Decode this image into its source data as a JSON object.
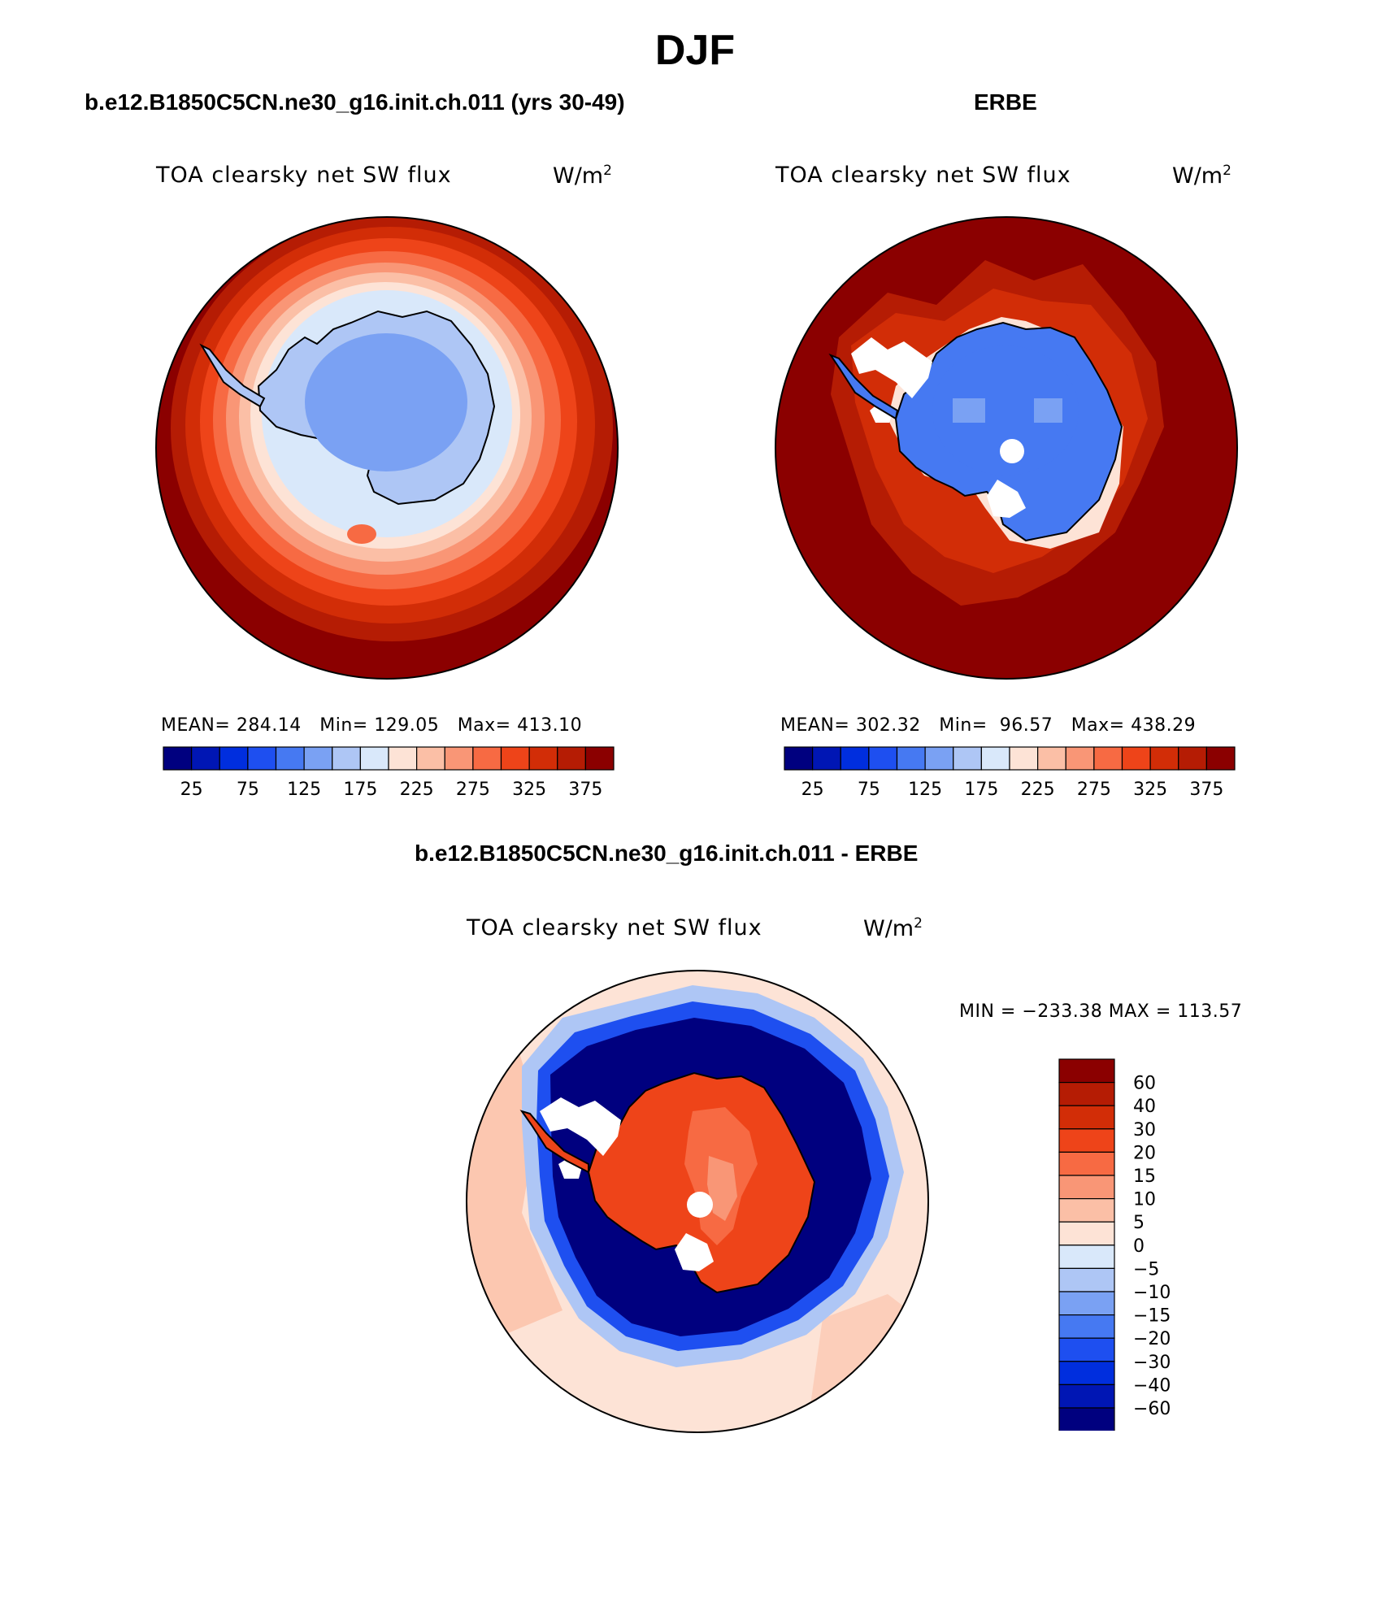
{
  "page_title": "DJF",
  "panels": [
    {
      "header": "b.e12.B1850C5CN.ne30_g16.init.ch.011 (yrs 30-49)",
      "variable": "TOA clearsky net SW flux",
      "units_base": "W/m",
      "units_exp": "2",
      "stats": "MEAN= 284.14   Min= 129.05   Max= 413.10",
      "colorbar_labels": [
        "25",
        "75",
        "125",
        "175",
        "225",
        "275",
        "325",
        "375"
      ]
    },
    {
      "header": "ERBE",
      "variable": "TOA clearsky net SW flux",
      "units_base": "W/m",
      "units_exp": "2",
      "stats": "MEAN= 302.32   Min=  96.57   Max= 438.29",
      "colorbar_labels": [
        "25",
        "75",
        "125",
        "175",
        "225",
        "275",
        "325",
        "375"
      ]
    },
    {
      "header": "b.e12.B1850C5CN.ne30_g16.init.ch.011 - ERBE",
      "variable": "TOA clearsky net SW flux",
      "units_base": "W/m",
      "units_exp": "2",
      "stats": "MIN = −233.38 MAX = 113.57",
      "colorbar_labels": [
        "60",
        "40",
        "30",
        "20",
        "15",
        "10",
        "5",
        "0",
        "−5",
        "−10",
        "−15",
        "−20",
        "−30",
        "−40",
        "−60"
      ]
    }
  ],
  "colors": {
    "abs_scale": [
      "#00007f",
      "#0016b4",
      "#002ede",
      "#1e4ff0",
      "#4679f2",
      "#7aa1f3",
      "#aec6f5",
      "#d9e8fa",
      "#fde3d6",
      "#fbbfa6",
      "#f99676",
      "#f76a43",
      "#ee4419",
      "#d22d07",
      "#b51c04",
      "#8b0000"
    ],
    "diff_scale_top_to_bottom": [
      "#8b0000",
      "#b51c04",
      "#d22d07",
      "#ee4419",
      "#f76a43",
      "#f99676",
      "#fbbfa6",
      "#fde3d6",
      "#d9e8fa",
      "#aec6f5",
      "#7aa1f3",
      "#4679f2",
      "#1e4ff0",
      "#002ede",
      "#0016b4",
      "#00007f"
    ]
  },
  "chart_data": [
    {
      "type": "heatmap",
      "title": "b.e12.B1850C5CN.ne30_g16.init.ch.011 (yrs 30-49)",
      "variable": "TOA clearsky net SW flux",
      "units": "W/m2",
      "projection": "south polar stereographic",
      "mean": 284.14,
      "min": 129.05,
      "max": 413.1,
      "contour_levels": [
        25,
        50,
        75,
        100,
        125,
        150,
        175,
        200,
        225,
        250,
        275,
        300,
        325,
        350,
        375
      ],
      "colorbar_ticks": [
        25,
        75,
        125,
        175,
        225,
        275,
        325,
        375
      ]
    },
    {
      "type": "heatmap",
      "title": "ERBE",
      "variable": "TOA clearsky net SW flux",
      "units": "W/m2",
      "projection": "south polar stereographic",
      "mean": 302.32,
      "min": 96.57,
      "max": 438.29,
      "contour_levels": [
        25,
        50,
        75,
        100,
        125,
        150,
        175,
        200,
        225,
        250,
        275,
        300,
        325,
        350,
        375
      ],
      "colorbar_ticks": [
        25,
        75,
        125,
        175,
        225,
        275,
        325,
        375
      ]
    },
    {
      "type": "heatmap",
      "title": "b.e12.B1850C5CN.ne30_g16.init.ch.011 - ERBE",
      "variable": "TOA clearsky net SW flux",
      "units": "W/m2",
      "projection": "south polar stereographic",
      "min": -233.38,
      "max": 113.57,
      "contour_levels": [
        60,
        40,
        30,
        20,
        15,
        10,
        5,
        0,
        -5,
        -10,
        -15,
        -20,
        -30,
        -40,
        -60
      ]
    }
  ]
}
